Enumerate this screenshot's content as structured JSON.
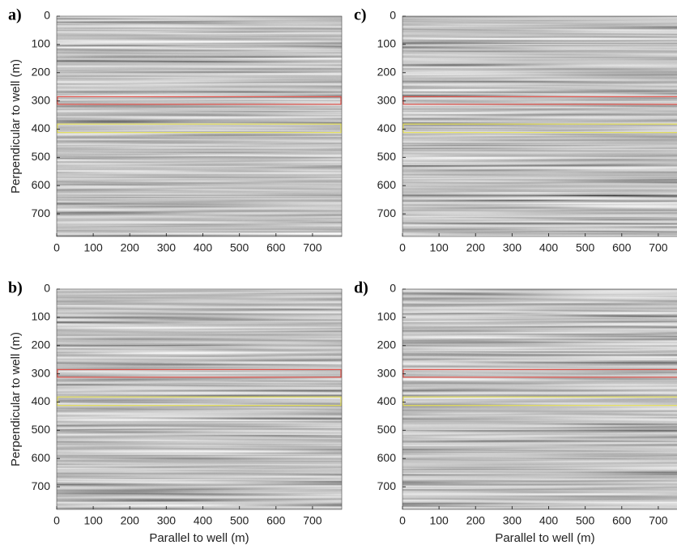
{
  "chart_data": [
    {
      "type": "image",
      "panel_label": "a)",
      "ylabel": "Perpendicular to well (m)",
      "xlim": [
        0,
        780
      ],
      "ylim": [
        0,
        780
      ],
      "y_reversed": true,
      "xticks": [
        0,
        100,
        200,
        300,
        400,
        500,
        600,
        700
      ],
      "yticks": [
        0,
        100,
        200,
        300,
        400,
        500,
        600,
        700
      ],
      "boxes": [
        {
          "color": "#e0524a",
          "y": [
            285,
            312
          ]
        },
        {
          "color": "#e6e05a",
          "y": [
            382,
            412
          ]
        }
      ]
    },
    {
      "type": "image",
      "panel_label": "b)",
      "ylabel": "Perpendicular to well (m)",
      "xlabel": "Parallel to well (m)",
      "xlim": [
        0,
        780
      ],
      "ylim": [
        0,
        780
      ],
      "y_reversed": true,
      "xticks": [
        0,
        100,
        200,
        300,
        400,
        500,
        600,
        700
      ],
      "yticks": [
        0,
        100,
        200,
        300,
        400,
        500,
        600,
        700
      ],
      "boxes": [
        {
          "color": "#e0524a",
          "y": [
            285,
            312
          ]
        },
        {
          "color": "#e6e05a",
          "y": [
            382,
            412
          ]
        }
      ]
    },
    {
      "type": "image",
      "panel_label": "c)",
      "xlim": [
        0,
        780
      ],
      "ylim": [
        0,
        780
      ],
      "y_reversed": true,
      "xticks": [
        0,
        100,
        200,
        300,
        400,
        500,
        600,
        700
      ],
      "yticks": [
        0,
        100,
        200,
        300,
        400,
        500,
        600,
        700
      ],
      "boxes": [
        {
          "color": "#e0524a",
          "y": [
            285,
            312
          ]
        },
        {
          "color": "#e6e05a",
          "y": [
            382,
            412
          ]
        }
      ]
    },
    {
      "type": "image",
      "panel_label": "d)",
      "xlabel": "Parallel to well (m)",
      "xlim": [
        0,
        780
      ],
      "ylim": [
        0,
        780
      ],
      "y_reversed": true,
      "xticks": [
        0,
        100,
        200,
        300,
        400,
        500,
        600,
        700
      ],
      "yticks": [
        0,
        100,
        200,
        300,
        400,
        500,
        600,
        700
      ],
      "boxes": [
        {
          "color": "#e0524a",
          "y": [
            285,
            312
          ]
        },
        {
          "color": "#e6e05a",
          "y": [
            382,
            412
          ]
        }
      ]
    }
  ]
}
